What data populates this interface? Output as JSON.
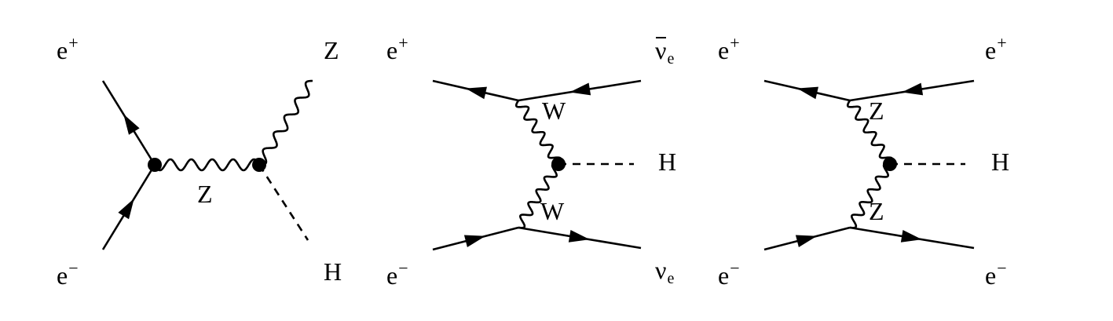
{
  "diagrams": [
    {
      "name": "higgsstrahlung",
      "incoming_top": {
        "base": "e",
        "sup": "+"
      },
      "incoming_bottom": {
        "base": "e",
        "sup": "−"
      },
      "propagator": "Z",
      "outgoing_top": "Z",
      "outgoing_bottom": "H"
    },
    {
      "name": "ww-fusion",
      "incoming_top": {
        "base": "e",
        "sup": "+"
      },
      "incoming_bottom": {
        "base": "e",
        "sup": "−"
      },
      "outgoing_top": {
        "base": "ν",
        "sub": "e"
      },
      "outgoing_bottom": {
        "base": "ν",
        "sub": "e"
      },
      "propagator_top": "W",
      "propagator_bottom": "W",
      "higgs": "H"
    },
    {
      "name": "zz-fusion",
      "incoming_top": {
        "base": "e",
        "sup": "+"
      },
      "incoming_bottom": {
        "base": "e",
        "sup": "−"
      },
      "outgoing_top": {
        "base": "e",
        "sup": "+"
      },
      "outgoing_bottom": {
        "base": "e",
        "sup": "−"
      },
      "propagator_top": "Z",
      "propagator_bottom": "Z",
      "higgs": "H"
    }
  ]
}
